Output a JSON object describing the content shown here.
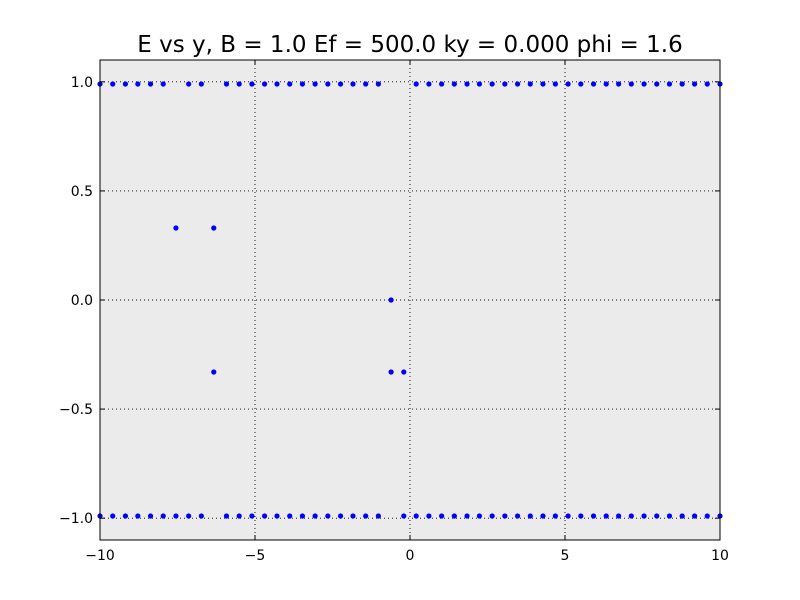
{
  "chart_data": {
    "type": "scatter",
    "title": "E vs y, B = 1.0 Ef = 500.0 ky = 0.000 phi = 1.6",
    "xlabel": "",
    "ylabel": "",
    "xlim": [
      -10,
      10
    ],
    "ylim": [
      -1.1,
      1.1
    ],
    "grid": true,
    "background": "#ebebeb",
    "marker_color": "#0000ff",
    "x_ticks": [
      {
        "value": -10,
        "label": "−10"
      },
      {
        "value": -5,
        "label": "−5"
      },
      {
        "value": 0,
        "label": "0"
      },
      {
        "value": 5,
        "label": "5"
      },
      {
        "value": 10,
        "label": "10"
      }
    ],
    "y_ticks": [
      {
        "value": 1.0,
        "label": "1.0"
      },
      {
        "value": 0.5,
        "label": "0.5"
      },
      {
        "value": 0.0,
        "label": "0.0"
      },
      {
        "value": -0.5,
        "label": "−0.5"
      },
      {
        "value": -1.0,
        "label": "−1.0"
      }
    ],
    "series": [
      {
        "points": [
          [
            -10.0,
            0.99
          ],
          [
            -9.59,
            0.99
          ],
          [
            -9.18,
            0.99
          ],
          [
            -8.78,
            0.99
          ],
          [
            -8.37,
            0.99
          ],
          [
            -7.96,
            0.99
          ],
          [
            -7.14,
            0.99
          ],
          [
            -6.73,
            0.99
          ],
          [
            -5.92,
            0.99
          ],
          [
            -5.51,
            0.99
          ],
          [
            -5.1,
            0.99
          ],
          [
            -4.69,
            0.99
          ],
          [
            -4.29,
            0.99
          ],
          [
            -3.88,
            0.99
          ],
          [
            -3.47,
            0.99
          ],
          [
            -3.06,
            0.99
          ],
          [
            -2.65,
            0.99
          ],
          [
            -2.24,
            0.99
          ],
          [
            -1.84,
            0.99
          ],
          [
            -1.43,
            0.99
          ],
          [
            -1.02,
            0.99
          ],
          [
            0.2,
            0.99
          ],
          [
            0.61,
            0.99
          ],
          [
            1.02,
            0.99
          ],
          [
            1.43,
            0.99
          ],
          [
            1.84,
            0.99
          ],
          [
            2.24,
            0.99
          ],
          [
            2.65,
            0.99
          ],
          [
            3.06,
            0.99
          ],
          [
            3.47,
            0.99
          ],
          [
            3.88,
            0.99
          ],
          [
            4.29,
            0.99
          ],
          [
            4.69,
            0.99
          ],
          [
            5.1,
            0.99
          ],
          [
            5.51,
            0.99
          ],
          [
            5.92,
            0.99
          ],
          [
            6.33,
            0.99
          ],
          [
            6.73,
            0.99
          ],
          [
            7.14,
            0.99
          ],
          [
            7.55,
            0.99
          ],
          [
            7.96,
            0.99
          ],
          [
            8.37,
            0.99
          ],
          [
            8.78,
            0.99
          ],
          [
            9.18,
            0.99
          ],
          [
            9.59,
            0.99
          ],
          [
            10.0,
            0.99
          ],
          [
            -7.55,
            0.33
          ],
          [
            -6.33,
            0.33
          ],
          [
            -0.61,
            0.0
          ],
          [
            -6.33,
            -0.33
          ],
          [
            -0.61,
            -0.33
          ],
          [
            -0.2,
            -0.33
          ],
          [
            -10.0,
            -0.99
          ],
          [
            -9.59,
            -0.99
          ],
          [
            -9.18,
            -0.99
          ],
          [
            -8.78,
            -0.99
          ],
          [
            -8.37,
            -0.99
          ],
          [
            -7.96,
            -0.99
          ],
          [
            -7.55,
            -0.99
          ],
          [
            -7.14,
            -0.99
          ],
          [
            -6.73,
            -0.99
          ],
          [
            -5.92,
            -0.99
          ],
          [
            -5.51,
            -0.99
          ],
          [
            -5.1,
            -0.99
          ],
          [
            -4.69,
            -0.99
          ],
          [
            -4.29,
            -0.99
          ],
          [
            -3.88,
            -0.99
          ],
          [
            -3.47,
            -0.99
          ],
          [
            -3.06,
            -0.99
          ],
          [
            -2.65,
            -0.99
          ],
          [
            -2.24,
            -0.99
          ],
          [
            -1.84,
            -0.99
          ],
          [
            -1.43,
            -0.99
          ],
          [
            -1.02,
            -0.99
          ],
          [
            -0.2,
            -0.99
          ],
          [
            0.2,
            -0.99
          ],
          [
            0.61,
            -0.99
          ],
          [
            1.02,
            -0.99
          ],
          [
            1.43,
            -0.99
          ],
          [
            1.84,
            -0.99
          ],
          [
            2.24,
            -0.99
          ],
          [
            2.65,
            -0.99
          ],
          [
            3.06,
            -0.99
          ],
          [
            3.47,
            -0.99
          ],
          [
            3.88,
            -0.99
          ],
          [
            4.29,
            -0.99
          ],
          [
            4.69,
            -0.99
          ],
          [
            5.1,
            -0.99
          ],
          [
            5.51,
            -0.99
          ],
          [
            5.92,
            -0.99
          ],
          [
            6.33,
            -0.99
          ],
          [
            6.73,
            -0.99
          ],
          [
            7.14,
            -0.99
          ],
          [
            7.55,
            -0.99
          ],
          [
            7.96,
            -0.99
          ],
          [
            8.37,
            -0.99
          ],
          [
            8.78,
            -0.99
          ],
          [
            9.18,
            -0.99
          ],
          [
            9.59,
            -0.99
          ],
          [
            10.0,
            -0.99
          ]
        ]
      }
    ]
  }
}
